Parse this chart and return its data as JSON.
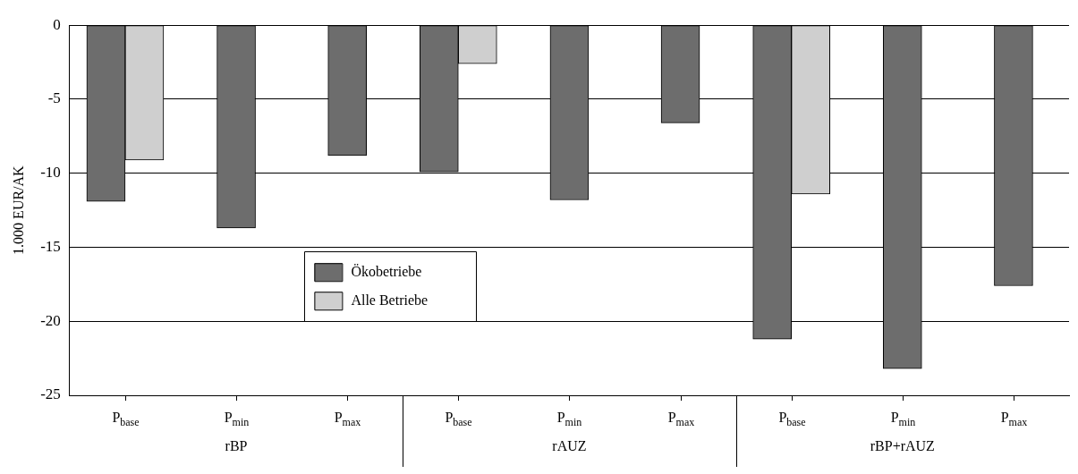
{
  "chart_data": {
    "type": "bar",
    "ylabel": "1.000 EUR/AK",
    "categories": [
      "P$_{base}$",
      "P$_{min}$",
      "P$_{max}$",
      "P$_{base}$",
      "P$_{min}$",
      "P$_{max}$",
      "P$_{base}$",
      "P$_{min}$",
      "P$_{max}$"
    ],
    "series": [
      {
        "name": "Ökobetriebe",
        "color": "#6d6d6d",
        "values": [
          -11.9,
          -13.7,
          -8.8,
          -9.9,
          -11.8,
          -6.6,
          -21.2,
          -23.2,
          -17.6
        ]
      },
      {
        "name": "Alle Betriebe",
        "color": "#cfcfcf",
        "values": [
          -9.1,
          null,
          null,
          -2.6,
          null,
          null,
          -11.4,
          null,
          null
        ]
      }
    ],
    "annotations": [
      "rBP",
      "rAUZ",
      "rBP+rAUZ"
    ],
    "ylim": [
      -25,
      0
    ],
    "yticks": [
      -25,
      -20,
      -15,
      -10,
      -5,
      0
    ],
    "grid": "y",
    "legend": "bottom left"
  }
}
